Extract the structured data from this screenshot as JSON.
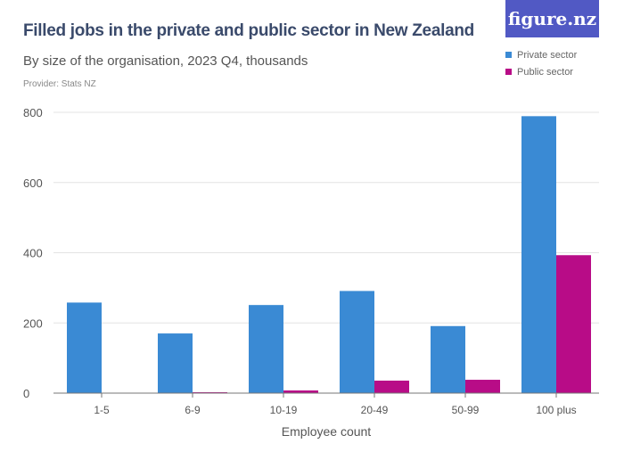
{
  "title": "Filled jobs in the private and public sector in New Zealand",
  "subtitle": "By size of the organisation, 2023 Q4, thousands",
  "provider": "Provider: Stats NZ",
  "logo": "figure.nz",
  "chart_data": {
    "type": "bar",
    "title": "Filled jobs in the private and public sector in New Zealand",
    "xlabel": "Employee count",
    "ylabel": "",
    "ylim": [
      0,
      800
    ],
    "yticks": [
      0,
      200,
      400,
      600,
      800
    ],
    "grid": true,
    "legend": "top-right",
    "categories": [
      "1-5",
      "6-9",
      "10-19",
      "20-49",
      "50-99",
      "100 plus"
    ],
    "series": [
      {
        "name": "Private sector",
        "color": "#3a8ad4",
        "values": [
          258,
          170,
          251,
          291,
          191,
          789
        ]
      },
      {
        "name": "Public sector",
        "color": "#b80c87",
        "values": [
          1,
          2.5,
          7.6,
          35.6,
          38,
          393
        ]
      }
    ]
  }
}
